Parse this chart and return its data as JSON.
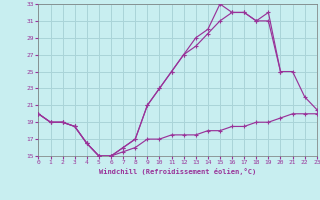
{
  "xlabel": "Windchill (Refroidissement éolien,°C)",
  "bg_color": "#c8eef0",
  "grid_color": "#aad4d8",
  "line_color": "#993399",
  "xlim": [
    0,
    23
  ],
  "ylim": [
    15,
    33
  ],
  "xticks": [
    0,
    1,
    2,
    3,
    4,
    5,
    6,
    7,
    8,
    9,
    10,
    11,
    12,
    13,
    14,
    15,
    16,
    17,
    18,
    19,
    20,
    21,
    22,
    23
  ],
  "yticks": [
    15,
    17,
    19,
    21,
    23,
    25,
    27,
    29,
    31,
    33
  ],
  "line1_x": [
    0,
    1,
    2,
    3,
    4,
    5,
    6,
    7,
    8,
    9,
    10,
    11,
    12,
    13,
    14,
    15,
    16,
    17,
    18,
    19,
    20,
    21,
    22,
    23
  ],
  "line1_y": [
    20,
    19,
    19,
    18.5,
    16.5,
    15,
    15,
    15.5,
    16,
    17,
    17,
    17.5,
    17.5,
    17.5,
    18,
    18,
    18.5,
    18.5,
    19,
    19,
    19.5,
    20,
    20,
    20
  ],
  "line2_x": [
    0,
    1,
    2,
    3,
    4,
    5,
    6,
    7,
    8,
    9,
    10,
    11,
    12,
    13,
    14,
    15,
    16,
    17,
    18,
    19,
    20
  ],
  "line2_y": [
    20,
    19,
    19,
    18.5,
    16.5,
    15,
    15,
    16,
    17,
    21,
    23,
    25,
    27,
    29,
    30,
    33,
    32,
    32,
    31,
    32,
    25
  ],
  "line3_x": [
    0,
    1,
    2,
    3,
    4,
    5,
    6,
    7,
    8,
    9,
    10,
    11,
    12,
    13,
    14,
    15,
    16,
    17,
    18,
    19,
    20,
    21,
    22,
    23
  ],
  "line3_y": [
    20,
    19,
    19,
    18.5,
    16.5,
    15,
    15,
    16,
    17,
    21,
    23,
    25,
    27,
    28,
    29.5,
    31,
    32,
    32,
    31,
    31,
    25,
    25,
    22,
    20.5
  ]
}
